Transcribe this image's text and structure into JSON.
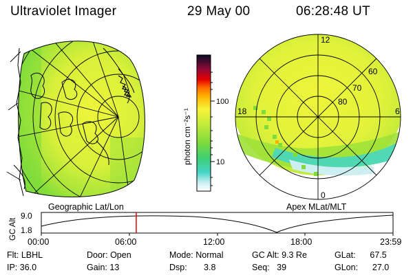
{
  "header": {
    "instrument": "Ultraviolet Imager",
    "date": "29 May 00",
    "time": "06:28:48 UT"
  },
  "left_panel": {
    "label": "Geographic Lat/Lon"
  },
  "right_panel": {
    "label": "Apex MLat/MLT",
    "mlt_labels": [
      "12",
      "18",
      "6",
      "0"
    ],
    "lat_labels": [
      "60",
      "70",
      "80"
    ]
  },
  "colorbar": {
    "unit_label": "photon cm⁻²s⁻¹",
    "tick_labels": [
      "100",
      "10"
    ]
  },
  "timeline": {
    "ylabel": "GC Alt",
    "ytick_top": "9.0",
    "ytick_bottom": "1.8",
    "time_ticks": [
      "00:00",
      "06:00",
      "12:00",
      "18:00",
      "23:59"
    ],
    "current_time_fraction": 0.2699
  },
  "info": {
    "filter": {
      "label": "Flt:",
      "value": "LBHL"
    },
    "ip": {
      "label": "IP:",
      "value": "36.0"
    },
    "door": {
      "label": "Door:",
      "value": "Open"
    },
    "gain": {
      "label": "Gain:",
      "value": "13"
    },
    "mode": {
      "label": "Mode:",
      "value": "Normal"
    },
    "dsp": {
      "label": "Dsp:",
      "value": "3.8"
    },
    "gcalt": {
      "label": "GC Alt:",
      "value": "9.3 Re"
    },
    "seq": {
      "label": "Seq:",
      "value": "39"
    },
    "glat": {
      "label": "GLat:",
      "value": "67.5"
    },
    "glon": {
      "label": "GLon:",
      "value": "27.0"
    }
  },
  "colors": {
    "yellow": "#e6f53c",
    "green": "#7fdc3a",
    "cyan": "#42d6c8",
    "marker": "#e60000"
  }
}
